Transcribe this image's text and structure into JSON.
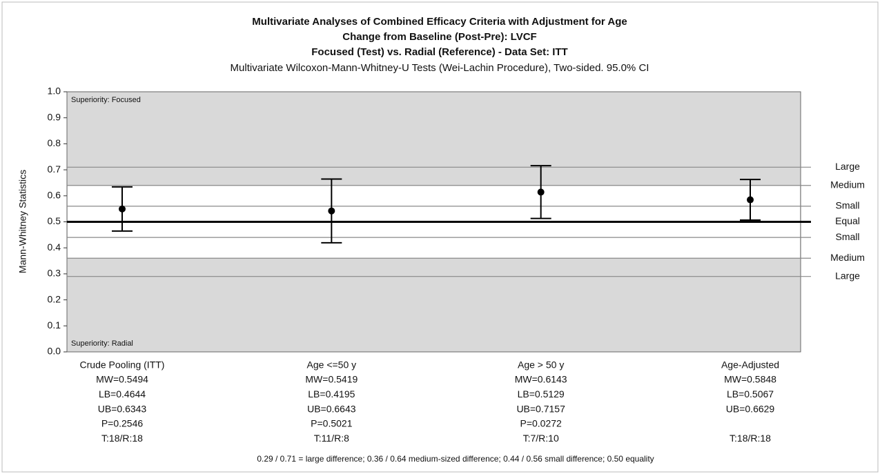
{
  "chart_data": {
    "type": "errorbar",
    "title": [
      "Multivariate Analyses of Combined Efficacy Criteria with Adjustment for Age",
      "Change from Baseline (Post-Pre): LVCF",
      "Focused (Test) vs. Radial (Reference) - Data Set: ITT"
    ],
    "subtitle": "Multivariate Wilcoxon-Mann-Whitney-U Tests (Wei-Lachin Procedure), Two-sided. 95.0% CI",
    "ylabel": "Mann-Whitney Statistics",
    "categories": [
      "Crude Pooling (ITT)",
      "Age <=50 y",
      "Age > 50 y",
      "Age-Adjusted"
    ],
    "values": [
      0.5494,
      0.5419,
      0.6143,
      0.5848
    ],
    "low": [
      0.4644,
      0.4195,
      0.5129,
      0.5067
    ],
    "high": [
      0.6343,
      0.6643,
      0.7157,
      0.6629
    ],
    "category_notes": [
      [
        "MW=0.5494",
        "LB=0.4644",
        "UB=0.6343",
        "P=0.2546",
        "T:18/R:18"
      ],
      [
        "MW=0.5419",
        "LB=0.4195",
        "UB=0.6643",
        "P=0.5021",
        "T:11/R:8"
      ],
      [
        "MW=0.6143",
        "LB=0.5129",
        "UB=0.7157",
        "P=0.0272",
        "T:7/R:10"
      ],
      [
        "MW=0.5848",
        "LB=0.5067",
        "UB=0.6629",
        null,
        "T:18/R:18"
      ]
    ],
    "color": "#000000",
    "ylim": [
      0,
      1
    ],
    "yticks": [
      {
        "value": 0,
        "label": "0.0"
      },
      0.1,
      0.2,
      0.3,
      0.4,
      0.5,
      0.6,
      0.7,
      0.8,
      0.9,
      {
        "value": 1,
        "label": "1.0"
      }
    ],
    "reference_lines": [
      {
        "value": 0.71,
        "label": "Large"
      },
      {
        "value": 0.64,
        "label": "Medium"
      },
      {
        "value": 0.56,
        "label": "Small"
      },
      {
        "value": 0.5,
        "label": "Equal",
        "thick": true
      },
      {
        "value": 0.44,
        "label": "Small"
      },
      {
        "value": 0.36,
        "label": "Medium"
      },
      {
        "value": 0.29,
        "label": "Large"
      }
    ],
    "corner_top": "Superiority: Focused",
    "corner_bottom": "Superiority: Radial",
    "footnote": "0.29 / 0.71 = large difference; 0.36 / 0.64 medium-sized difference; 0.44 / 0.56 small difference; 0.50 equality"
  }
}
